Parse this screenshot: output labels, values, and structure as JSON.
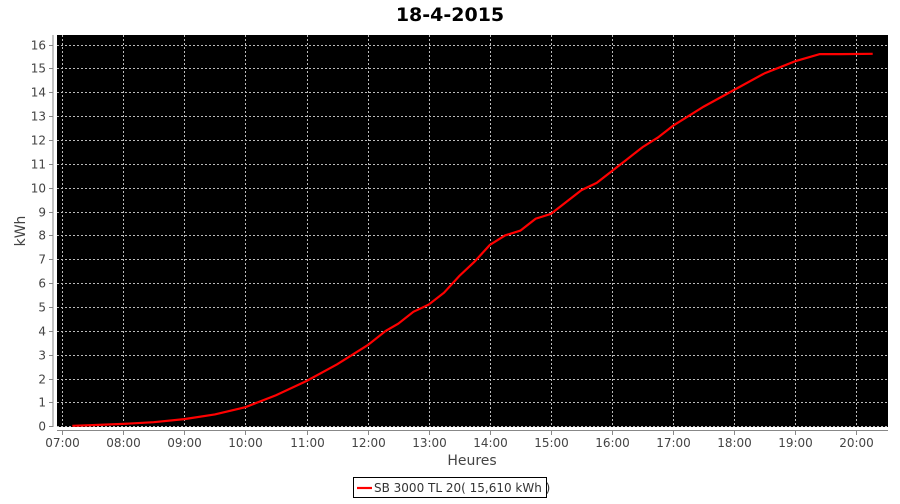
{
  "chart_data": {
    "type": "line",
    "title": "18-4-2015",
    "xlabel": "Heures",
    "ylabel": "kWh",
    "xlim": [
      "06:55",
      "20:31"
    ],
    "ylim": [
      0,
      16.4
    ],
    "grid": true,
    "background_color": "#000000",
    "line_color": "#ff0000",
    "legend_position": "bottom",
    "x_ticks": [
      "07:00",
      "08:00",
      "09:00",
      "10:00",
      "11:00",
      "12:00",
      "13:00",
      "14:00",
      "15:00",
      "16:00",
      "17:00",
      "18:00",
      "19:00",
      "20:00"
    ],
    "y_ticks": [
      0,
      1,
      2,
      3,
      4,
      5,
      6,
      7,
      8,
      9,
      10,
      11,
      12,
      13,
      14,
      15,
      16
    ],
    "series": [
      {
        "name": "SB 3000 TL 20( 15,610 kWh )",
        "x": [
          "07:10",
          "07:30",
          "08:00",
          "08:30",
          "09:00",
          "09:30",
          "10:00",
          "10:30",
          "11:00",
          "11:30",
          "12:00",
          "12:18",
          "12:30",
          "12:45",
          "13:00",
          "13:15",
          "13:30",
          "13:45",
          "14:00",
          "14:15",
          "14:30",
          "14:45",
          "15:00",
          "15:15",
          "15:30",
          "15:45",
          "16:00",
          "16:15",
          "16:30",
          "16:45",
          "17:00",
          "17:30",
          "18:00",
          "18:30",
          "19:00",
          "19:24",
          "19:45",
          "20:16"
        ],
        "y": [
          0.02,
          0.05,
          0.1,
          0.17,
          0.3,
          0.5,
          0.8,
          1.3,
          1.9,
          2.6,
          3.4,
          4.0,
          4.3,
          4.8,
          5.1,
          5.6,
          6.3,
          6.9,
          7.6,
          8.0,
          8.2,
          8.7,
          8.9,
          9.4,
          9.9,
          10.2,
          10.7,
          11.2,
          11.7,
          12.1,
          12.6,
          13.4,
          14.1,
          14.8,
          15.3,
          15.6,
          15.6,
          15.61
        ]
      }
    ]
  }
}
